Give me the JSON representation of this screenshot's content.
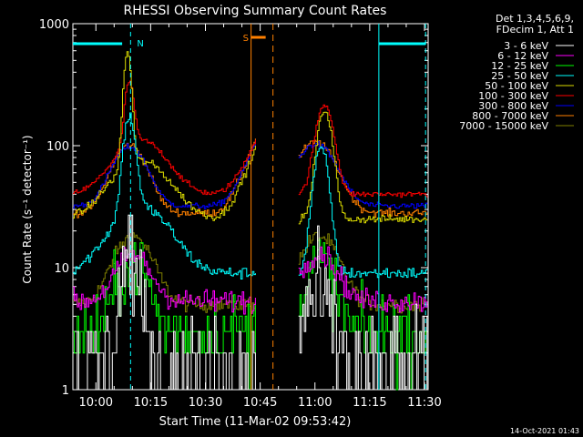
{
  "chart_data": {
    "type": "line",
    "title": "RHESSI Observing Summary Count Rates",
    "xlabel": "Start Time (11-Mar-02 09:53:42)",
    "ylabel": "Count Rate (s⁻¹ detector⁻¹)",
    "y_scale": "log",
    "ylim": [
      1,
      1000
    ],
    "xlim_minutes": [
      -6.3,
      91.0
    ],
    "x_ticks": [
      {
        "t": 0,
        "label": "10:00"
      },
      {
        "t": 15,
        "label": "10:15"
      },
      {
        "t": 30,
        "label": "10:30"
      },
      {
        "t": 45,
        "label": "10:45"
      },
      {
        "t": 60,
        "label": "11:00"
      },
      {
        "t": 75,
        "label": "11:15"
      },
      {
        "t": 90,
        "label": "11:30"
      }
    ],
    "y_ticks": [
      {
        "v": 1,
        "label": "1"
      },
      {
        "v": 10,
        "label": "10"
      },
      {
        "v": 100,
        "label": "100"
      },
      {
        "v": 1000,
        "label": "1000"
      }
    ],
    "legend_header": [
      "Det 1,3,4,5,6,9,",
      "FDecim 1, Att 1"
    ],
    "legend_position": "top-right",
    "series": [
      {
        "name": "3 - 6 keV",
        "color": "#ffffff"
      },
      {
        "name": "6 - 12 keV",
        "color": "#ff00ff"
      },
      {
        "name": "12 - 25 keV",
        "color": "#00ff00"
      },
      {
        "name": "25 - 50 keV",
        "color": "#00ffff"
      },
      {
        "name": "50 - 100 keV",
        "color": "#dddd00"
      },
      {
        "name": "100 - 300 keV",
        "color": "#ff0000"
      },
      {
        "name": "300 - 800 keV",
        "color": "#0000ff"
      },
      {
        "name": "800 - 7000 keV",
        "color": "#ff8000"
      },
      {
        "name": "7000 - 15000 keV",
        "color": "#808000"
      }
    ],
    "data_segments_minutes": [
      [
        -6.3,
        43.8
      ],
      [
        55.5,
        91.0
      ]
    ],
    "series_profiles": [
      {
        "name": "7000 - 15000 keV",
        "base": 5.0,
        "peaks": [
          [
            10,
            16,
            6.5
          ],
          [
            61,
            16,
            6.5
          ]
        ],
        "noise": 0.08
      },
      {
        "name": "800 - 7000 keV",
        "base": 28,
        "peaks": [
          [
            9,
            90,
            6
          ],
          [
            60,
            95,
            7
          ]
        ],
        "noise": 0.04,
        "rise_end": 120
      },
      {
        "name": "300 - 800 keV",
        "base": 32,
        "peaks": [
          [
            9,
            85,
            6
          ],
          [
            60,
            90,
            7
          ]
        ],
        "noise": 0.03,
        "rise_end": 112
      },
      {
        "name": "100 - 300 keV",
        "base": 40,
        "peaks": [
          [
            9,
            260,
            1.5
          ],
          [
            62.5,
            200,
            3
          ],
          [
            12,
            95,
            9
          ]
        ],
        "noise": 0.03,
        "rise_end": 118
      },
      {
        "name": "50 - 100 keV",
        "base": 25,
        "peaks": [
          [
            8.5,
            530,
            1.3
          ],
          [
            62.5,
            185,
            2.5
          ],
          [
            12,
            65,
            10
          ]
        ],
        "noise": 0.04,
        "rise_end": 100
      },
      {
        "name": "25 - 50 keV",
        "base": 9,
        "peaks": [
          [
            9,
            150,
            2
          ],
          [
            61.5,
            90,
            2.5
          ],
          [
            12,
            28,
            10
          ]
        ],
        "noise": 0.06
      },
      {
        "name": "12 - 25 keV",
        "base": 3.0,
        "peaks": [
          [
            10,
            10,
            5
          ],
          [
            61,
            10,
            5
          ]
        ],
        "noise": 0.35
      },
      {
        "name": "6 - 12 keV",
        "base": 5.3,
        "peaks": [
          [
            10,
            10.5,
            6
          ],
          [
            61,
            11,
            6
          ]
        ],
        "noise": 0.12
      },
      {
        "name": "3 - 6 keV",
        "base": 1.4,
        "peaks": [
          [
            9,
            12,
            3
          ],
          [
            60,
            5,
            5
          ]
        ],
        "noise": 0.6
      }
    ],
    "annotations": {
      "night_start": -6.3,
      "night_end": 7.2,
      "n_label": "N",
      "n_line_t": 9.5,
      "night2_start": 77.5,
      "night2_end": 90.3,
      "saa_label": "S",
      "saa_start": 42.5,
      "saa_end": 46.5,
      "attenuator_line_t": 48.5,
      "cyan_solid_lines_t": [
        77.5
      ],
      "cyan_dashed_lines_t": [
        9.5,
        90.3
      ]
    },
    "footer_date": "14-Oct-2021 01:43"
  }
}
